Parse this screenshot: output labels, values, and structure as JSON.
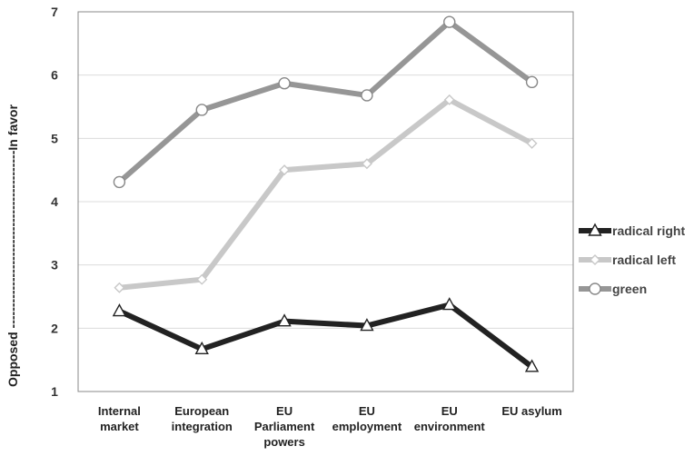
{
  "chart_data": {
    "type": "line",
    "categories": [
      "Internal market",
      "European integration",
      "EU Parliament powers",
      "EU employment",
      "EU environment",
      "EU asylum"
    ],
    "series": [
      {
        "name": "radical right",
        "values": [
          2.27,
          1.67,
          2.11,
          2.04,
          2.37,
          1.39
        ],
        "color": "#222222",
        "marker": "triangle"
      },
      {
        "name": "radical left",
        "values": [
          2.64,
          2.77,
          4.5,
          4.6,
          5.61,
          4.92
        ],
        "color": "#c8c8c8",
        "marker": "diamond"
      },
      {
        "name": "green",
        "values": [
          4.31,
          5.45,
          5.87,
          5.68,
          6.84,
          5.89
        ],
        "color": "#969696",
        "marker": "circle"
      }
    ],
    "ylabel": "Opposed ------------------------------------------In favor",
    "xlabel": "",
    "ylim": [
      1,
      7
    ],
    "yticks": [
      1,
      2,
      3,
      4,
      5,
      6,
      7
    ],
    "grid": true,
    "legend": "right"
  }
}
